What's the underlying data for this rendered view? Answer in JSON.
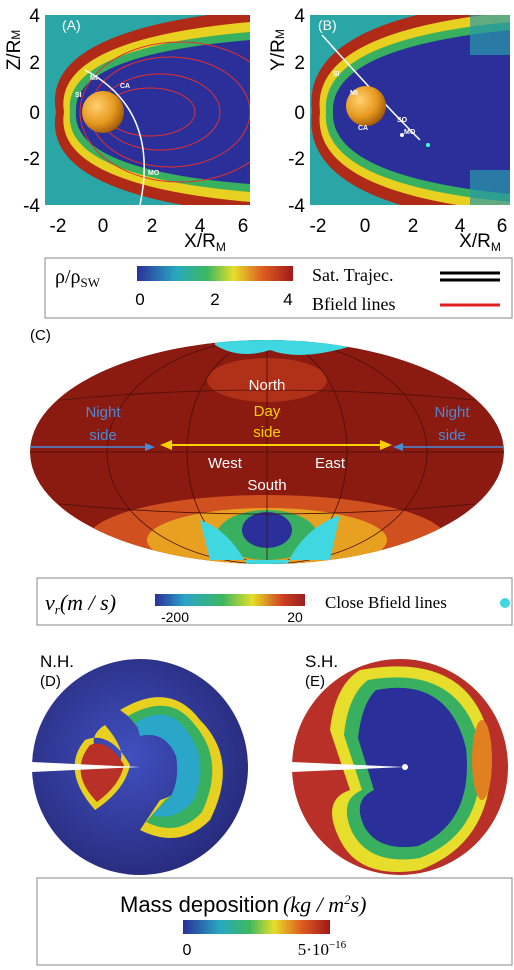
{
  "panel_a": {
    "label": "(A)",
    "y_label": {
      "text": "Z/R",
      "sub": "M"
    },
    "x_label": {
      "text": "X/R",
      "sub": "M"
    },
    "x_ticks": [
      "-2",
      "0",
      "2",
      "4",
      "6"
    ],
    "y_ticks": [
      "4",
      "2",
      "0",
      "-2",
      "-4"
    ],
    "annotations": [
      "SI",
      "MI",
      "CA",
      "MO"
    ]
  },
  "panel_b": {
    "label": "(B)",
    "y_label": {
      "text": "Y/R",
      "sub": "M"
    },
    "x_label": {
      "text": "X/R",
      "sub": "M"
    },
    "x_ticks": [
      "-2",
      "0",
      "2",
      "4",
      "6"
    ],
    "y_ticks": [
      "4",
      "2",
      "0",
      "-2",
      "-4"
    ],
    "annotations": [
      "SI",
      "MI",
      "CA",
      "SO",
      "MO"
    ]
  },
  "legend_density": {
    "label": {
      "text": "ρ/ρ",
      "sub": "SW"
    },
    "ticks": [
      "0",
      "2",
      "4"
    ],
    "entries": [
      "Sat. Trajec.",
      "Bfield lines"
    ]
  },
  "panel_c": {
    "label": "(C)",
    "north": "North",
    "south": "South",
    "day_side": [
      "Day",
      "side"
    ],
    "west": "West",
    "east": "East",
    "night_side_left": [
      "Night",
      "side"
    ],
    "night_side_right": [
      "Night",
      "side"
    ]
  },
  "legend_velocity": {
    "label": {
      "text": "v",
      "sub": "r"
    },
    "unit": "(m / s)",
    "ticks": [
      "-200",
      "20"
    ],
    "entry": "Close Bfield lines"
  },
  "panel_d": {
    "title": "N.H.",
    "label": "(D)"
  },
  "panel_e": {
    "title": "S.H.",
    "label": "(E)"
  },
  "legend_mass": {
    "label": "Mass deposition",
    "unit": {
      "text": "(kg / m",
      "sup": "2",
      "end": "s)"
    },
    "ticks": [
      {
        "text": "0"
      },
      {
        "text": "5·10",
        "sup": "−16"
      }
    ]
  }
}
